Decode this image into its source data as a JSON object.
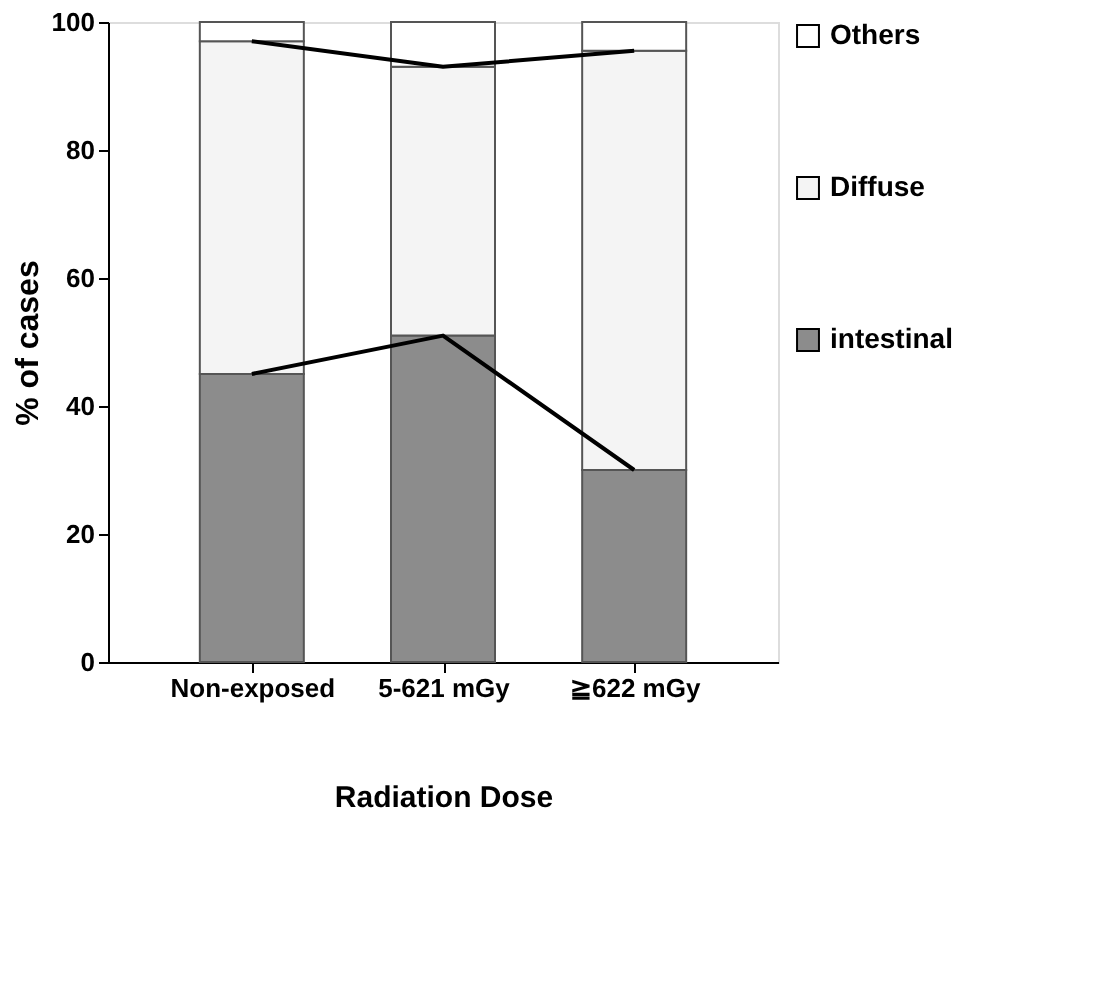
{
  "chart_data": {
    "type": "bar",
    "stacked": true,
    "xlabel": "Radiation Dose",
    "ylabel": "% of cases",
    "categories": [
      "Non-exposed",
      "5-621 mGy",
      "≧622 mGy"
    ],
    "series": [
      {
        "name": "intestinal",
        "color": "#8c8c8c",
        "values": [
          45,
          51,
          30
        ]
      },
      {
        "name": "Diffuse",
        "color": "#f4f4f4",
        "values": [
          52,
          42,
          65.5
        ]
      },
      {
        "name": "Others",
        "color": "#ffffff",
        "values": [
          3,
          7,
          4.5
        ]
      },
      {
        "type": "line",
        "color": "#000000",
        "values": [
          45,
          51,
          30
        ]
      },
      {
        "type": "line",
        "color": "#000000",
        "values": [
          97,
          93,
          95.5
        ]
      }
    ],
    "ylim": [
      0,
      100
    ],
    "yticks": [
      0,
      20,
      40,
      60,
      80,
      100
    ],
    "grid": false,
    "legend": "right"
  }
}
